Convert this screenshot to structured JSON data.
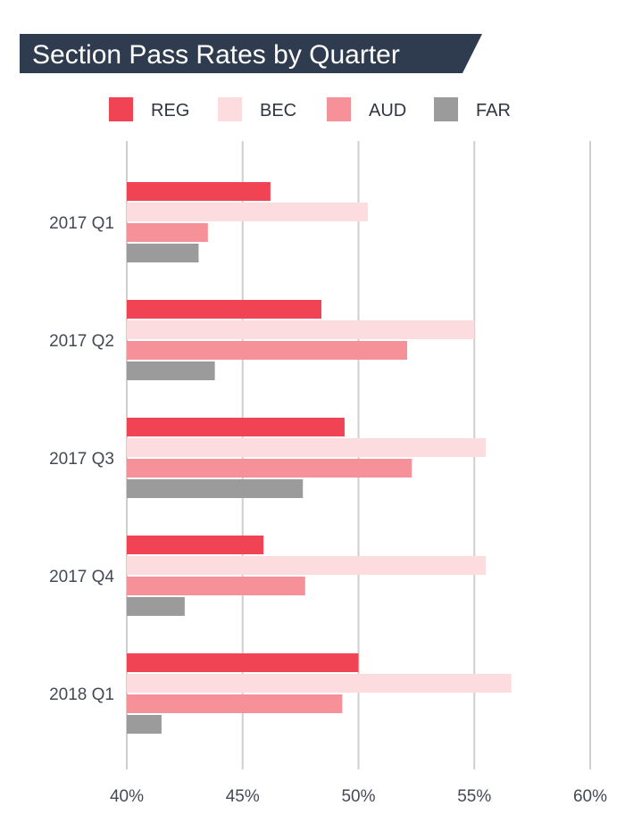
{
  "chart_data": {
    "type": "bar",
    "orientation": "horizontal",
    "title": "Section Pass Rates by Quarter",
    "categories": [
      "2017 Q1",
      "2017 Q2",
      "2017 Q3",
      "2017 Q4",
      "2018 Q1"
    ],
    "series": [
      {
        "name": "REG",
        "color": "#f04455",
        "values": [
          46.2,
          48.4,
          49.4,
          45.9,
          50.0
        ]
      },
      {
        "name": "BEC",
        "color": "#fddce0",
        "values": [
          50.4,
          55.0,
          55.5,
          55.5,
          56.6
        ]
      },
      {
        "name": "AUD",
        "color": "#f79199",
        "values": [
          43.5,
          52.1,
          52.3,
          47.7,
          49.3
        ]
      },
      {
        "name": "FAR",
        "color": "#9b9b9b",
        "values": [
          43.1,
          43.8,
          47.6,
          42.5,
          41.5
        ]
      }
    ],
    "xlim": [
      40,
      60
    ],
    "xticks": [
      "40%",
      "45%",
      "50%",
      "55%",
      "60%"
    ],
    "grid": true,
    "legend_position": "top"
  },
  "colors": {
    "title_bg": "#2f3c4f",
    "grid": "#cfcfcf"
  }
}
